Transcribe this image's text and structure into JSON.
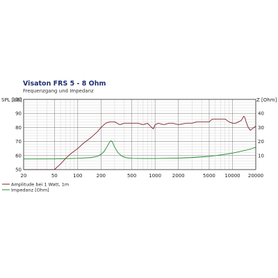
{
  "chart_data": {
    "type": "line",
    "title": "Visaton FRS 5 - 8 Ohm",
    "subtitle": "Frequenzgang und Impedanz",
    "xscale": "log",
    "xlim": [
      20,
      20000
    ],
    "ylabel_left": "SPL [dB]",
    "ylim_left": [
      50,
      100
    ],
    "ylabel_right": "Z [Ohm]",
    "ylim_right": [
      0,
      50
    ],
    "grid": true,
    "legend_position": "bottom-left",
    "x_ticks": [
      {
        "value": 20,
        "label": "20"
      },
      {
        "value": 50,
        "label": "50"
      },
      {
        "value": 100,
        "label": "100"
      },
      {
        "value": 200,
        "label": "200"
      },
      {
        "value": 500,
        "label": "500"
      },
      {
        "value": 1000,
        "label": "1000"
      },
      {
        "value": 2000,
        "label": "2000"
      },
      {
        "value": 5000,
        "label": "5000"
      },
      {
        "value": 10000,
        "label": "10000"
      },
      {
        "value": 20000,
        "label": "20000"
      }
    ],
    "y_ticks_left": [
      {
        "value": 50,
        "label": "50"
      },
      {
        "value": 60,
        "label": "60"
      },
      {
        "value": 70,
        "label": "70"
      },
      {
        "value": 80,
        "label": "80"
      },
      {
        "value": 90,
        "label": "90"
      },
      {
        "value": 100,
        "label": "100"
      }
    ],
    "y_ticks_right": [
      {
        "value": 10,
        "label": "10"
      },
      {
        "value": 20,
        "label": "20"
      },
      {
        "value": 30,
        "label": "30"
      },
      {
        "value": 40,
        "label": "40"
      }
    ],
    "series": [
      {
        "name": "Amplitude bei 1 Watt, 1m",
        "axis": "left",
        "color": "#7a1f2b",
        "x": [
          20,
          40,
          50,
          60,
          70,
          80,
          100,
          120,
          150,
          180,
          200,
          230,
          260,
          300,
          350,
          400,
          500,
          600,
          700,
          800,
          900,
          950,
          1000,
          1100,
          1300,
          1500,
          1700,
          2000,
          2500,
          3000,
          3500,
          4000,
          4500,
          5000,
          5500,
          6000,
          7000,
          8000,
          9000,
          10000,
          11000,
          12000,
          13000,
          14000,
          14500,
          15000,
          16000,
          17000,
          18000,
          20000
        ],
        "y": [
          50,
          50,
          50,
          54,
          58,
          61,
          65,
          69,
          73,
          77,
          80,
          83,
          84,
          84,
          82,
          83,
          83,
          83,
          82,
          83,
          80,
          79,
          82,
          83,
          82,
          83,
          83,
          82,
          83,
          83,
          84,
          84,
          84,
          84,
          86,
          86,
          86,
          86,
          84,
          83,
          83,
          84,
          85,
          88,
          87,
          84,
          80,
          78,
          79,
          81
        ]
      },
      {
        "name": "Impedanz [Ohm]",
        "axis": "right",
        "color": "#1f8a2c",
        "x": [
          20,
          50,
          100,
          150,
          180,
          200,
          220,
          240,
          260,
          270,
          280,
          300,
          330,
          370,
          420,
          500,
          700,
          1000,
          2000,
          3000,
          5000,
          7000,
          10000,
          15000,
          20000
        ],
        "y": [
          7.5,
          7.6,
          8.0,
          8.6,
          9.5,
          10.8,
          13.0,
          16.5,
          19.8,
          20.5,
          19.8,
          16.0,
          12.2,
          9.6,
          8.5,
          8.0,
          7.9,
          7.9,
          8.2,
          8.6,
          9.4,
          10.4,
          11.7,
          13.8,
          15.8
        ]
      }
    ]
  }
}
